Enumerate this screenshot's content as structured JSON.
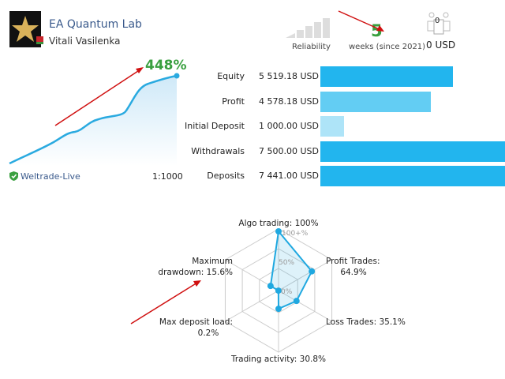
{
  "header": {
    "title": "EA Quantum Lab",
    "author": "Vitali Vasilenka",
    "reliability_label": "Reliability",
    "weeks_value": "5",
    "weeks_label": "weeks (since 2021)",
    "subscribers_count": "0",
    "subscribers_usd": "0 USD"
  },
  "growth": {
    "percent": "448%",
    "broker": "Weltrade-Live",
    "leverage": "1:1000"
  },
  "stats": [
    {
      "label": "Equity",
      "value": "5 519.18 USD",
      "fraction": 0.72,
      "color": "#22b5ee"
    },
    {
      "label": "Profit",
      "value": "4 578.18 USD",
      "fraction": 0.6,
      "color": "#63cdf3"
    },
    {
      "label": "Initial Deposit",
      "value": "1 000.00 USD",
      "fraction": 0.13,
      "color": "#aee4f8"
    },
    {
      "label": "Withdrawals",
      "value": "7 500.00 USD",
      "fraction": 1.0,
      "color": "#22b5ee"
    },
    {
      "label": "Deposits",
      "value": "7 441.00 USD",
      "fraction": 1.0,
      "color": "#22b5ee"
    }
  ],
  "radar": {
    "ticks": [
      "100+%",
      "50%",
      "0%"
    ],
    "axes": [
      {
        "label1": "Algo trading: 100%",
        "label2": "",
        "value": 100
      },
      {
        "label1": "Profit Trades:",
        "label2": "64.9%",
        "value": 64.9
      },
      {
        "label1": "Loss Trades: 35.1%",
        "label2": "",
        "value": 35.1
      },
      {
        "label1": "Trading activity: 30.8%",
        "label2": "",
        "value": 30.8
      },
      {
        "label1": "Max deposit load:",
        "label2": "0.2%",
        "value": 0.2
      },
      {
        "label1": "Maximum",
        "label2": "drawdown: 15.6%",
        "value": 15.6
      }
    ]
  },
  "colors": {
    "accent": "#1fa8e0",
    "green": "#3aa040",
    "arrow": "#d01010"
  }
}
